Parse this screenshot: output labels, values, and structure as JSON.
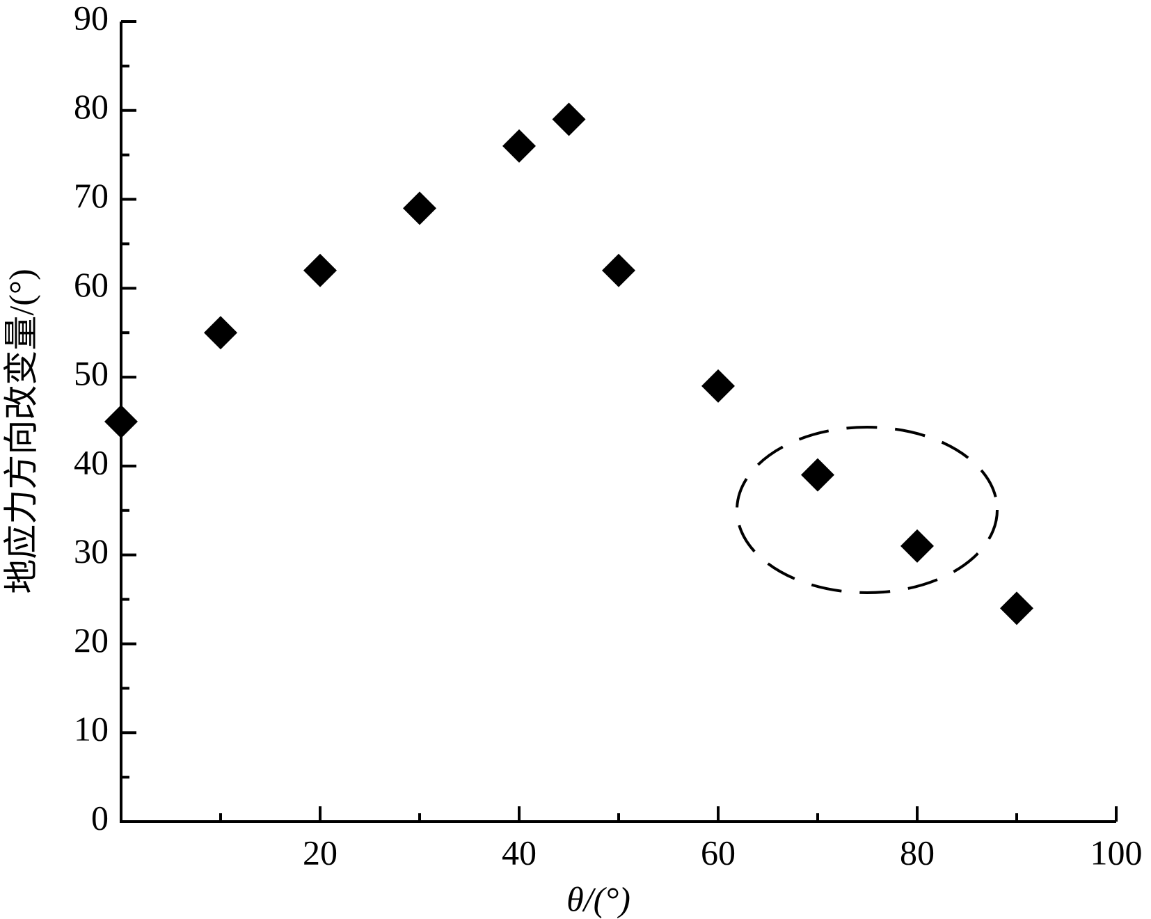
{
  "chart_data": {
    "type": "scatter",
    "x_label": "θ/(°)",
    "y_label": "地应力方向改变量/(°)",
    "x": [
      0,
      10,
      20,
      30,
      40,
      45,
      50,
      60,
      70,
      80,
      90
    ],
    "values": [
      45,
      55,
      62,
      69,
      76,
      79,
      62,
      49,
      39,
      31,
      24
    ],
    "color": "#000000",
    "xlim": [
      0,
      100
    ],
    "xticks": [
      20,
      40,
      60,
      80,
      100
    ],
    "ylim": [
      0,
      90
    ],
    "yticks": [
      0,
      10,
      20,
      30,
      40,
      50,
      60,
      70,
      80,
      90
    ],
    "grid": false
  }
}
